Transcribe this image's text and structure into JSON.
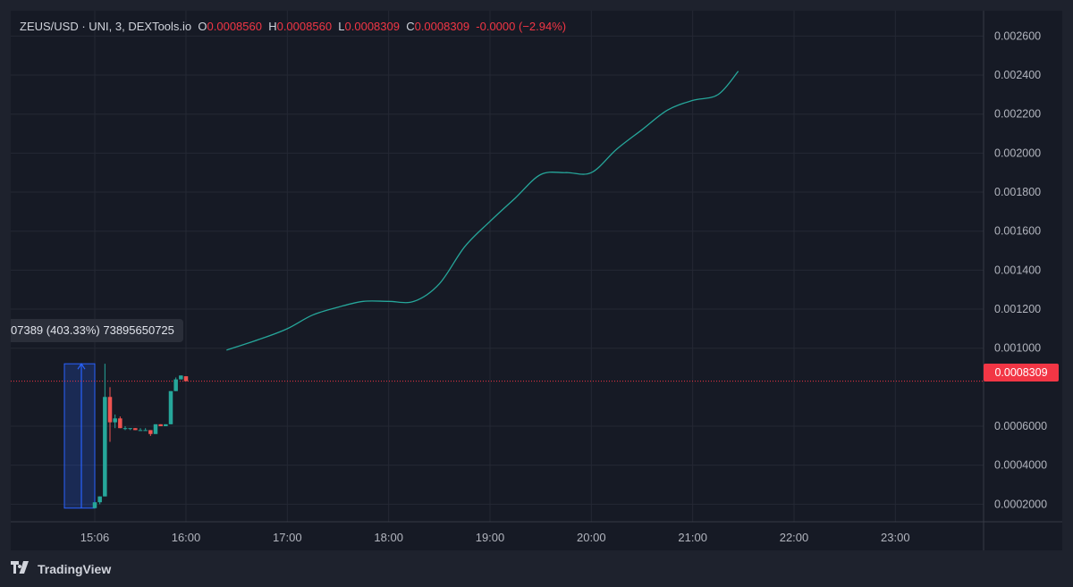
{
  "legend": {
    "symbol": "ZEUS/USD · UNI, 3, DEXTools.io",
    "o_label": "O",
    "o_value": "0.0008560",
    "h_label": "H",
    "h_value": "0.0008560",
    "l_label": "L",
    "l_value": "0.0008309",
    "c_label": "C",
    "c_value": "0.0008309",
    "change": "-0.0000 (−2.94%)"
  },
  "measure_label": "07389 (403.33%) 73895650725",
  "current_price_label": "0.0008309",
  "branding": "TradingView",
  "colors": {
    "background": "#161a25",
    "up": "#26a69a",
    "down": "#ef5350",
    "line": "#26a69a",
    "price_line": "#f23645",
    "measure_fill": "#2962ff"
  },
  "chart_data": {
    "type": "candlestick",
    "title": "ZEUS/USD · UNI, 3, DEXTools.io",
    "x_ticks": [
      "15:06",
      "16:00",
      "17:00",
      "18:00",
      "19:00",
      "20:00",
      "21:00",
      "22:00",
      "23:00"
    ],
    "y_ticks": [
      "0.002600",
      "0.002400",
      "0.002200",
      "0.002000",
      "0.001800",
      "0.001600",
      "0.001400",
      "0.001200",
      "0.001000",
      "0.0006000",
      "0.0004000",
      "0.0002000"
    ],
    "ylim": [
      0.00011,
      0.00273
    ],
    "current_price": 0.0008309,
    "candles": [
      {
        "time": "15:06",
        "o": 0.00018,
        "h": 0.00021,
        "l": 0.00018,
        "c": 0.00021
      },
      {
        "time": "15:09",
        "o": 0.00021,
        "h": 0.00024,
        "l": 0.0002,
        "c": 0.00024
      },
      {
        "time": "15:12",
        "o": 0.00024,
        "h": 0.00092,
        "l": 0.00024,
        "c": 0.00075
      },
      {
        "time": "15:15",
        "o": 0.00075,
        "h": 0.0008,
        "l": 0.00052,
        "c": 0.00062
      },
      {
        "time": "15:18",
        "o": 0.00062,
        "h": 0.00066,
        "l": 0.00059,
        "c": 0.00064
      },
      {
        "time": "15:21",
        "o": 0.00064,
        "h": 0.00065,
        "l": 0.00059,
        "c": 0.00059
      },
      {
        "time": "15:24",
        "o": 0.00059,
        "h": 0.0006,
        "l": 0.00058,
        "c": 0.00059
      },
      {
        "time": "15:27",
        "o": 0.00059,
        "h": 0.00059,
        "l": 0.00058,
        "c": 0.00059
      },
      {
        "time": "15:30",
        "o": 0.00059,
        "h": 0.00059,
        "l": 0.00058,
        "c": 0.00058
      },
      {
        "time": "15:33",
        "o": 0.00058,
        "h": 0.00059,
        "l": 0.00058,
        "c": 0.00058
      },
      {
        "time": "15:36",
        "o": 0.00058,
        "h": 0.00059,
        "l": 0.00058,
        "c": 0.00058
      },
      {
        "time": "15:39",
        "o": 0.00058,
        "h": 0.00058,
        "l": 0.00055,
        "c": 0.00056
      },
      {
        "time": "15:42",
        "o": 0.00056,
        "h": 0.00061,
        "l": 0.00056,
        "c": 0.00061
      },
      {
        "time": "15:45",
        "o": 0.00061,
        "h": 0.00061,
        "l": 0.0006,
        "c": 0.0006
      },
      {
        "time": "15:48",
        "o": 0.0006,
        "h": 0.00061,
        "l": 0.0006,
        "c": 0.00061
      },
      {
        "time": "15:51",
        "o": 0.00061,
        "h": 0.00078,
        "l": 0.00061,
        "c": 0.00078
      },
      {
        "time": "15:54",
        "o": 0.00078,
        "h": 0.00085,
        "l": 0.00078,
        "c": 0.00084
      },
      {
        "time": "15:57",
        "o": 0.00084,
        "h": 0.00086,
        "l": 0.00084,
        "c": 0.00086
      },
      {
        "time": "16:00",
        "o": 0.000856,
        "h": 0.000856,
        "l": 0.0008309,
        "c": 0.0008309
      }
    ],
    "line_series": {
      "x": [
        "16:24",
        "16:45",
        "17:00",
        "17:15",
        "17:30",
        "17:45",
        "18:00",
        "18:15",
        "18:30",
        "18:45",
        "19:00",
        "19:15",
        "19:30",
        "19:45",
        "20:00",
        "20:15",
        "20:30",
        "20:45",
        "21:00",
        "21:15",
        "21:27"
      ],
      "y": [
        0.00099,
        0.00105,
        0.0011,
        0.00117,
        0.00121,
        0.00124,
        0.00124,
        0.00124,
        0.00133,
        0.00152,
        0.00165,
        0.00177,
        0.00189,
        0.0019,
        0.0019,
        0.00202,
        0.00212,
        0.00222,
        0.00227,
        0.0023,
        0.00242
      ]
    },
    "measure": {
      "from_time": "14:48",
      "to_time": "15:06",
      "from_price": 0.00018,
      "to_price": 0.00092
    },
    "grid": true
  }
}
